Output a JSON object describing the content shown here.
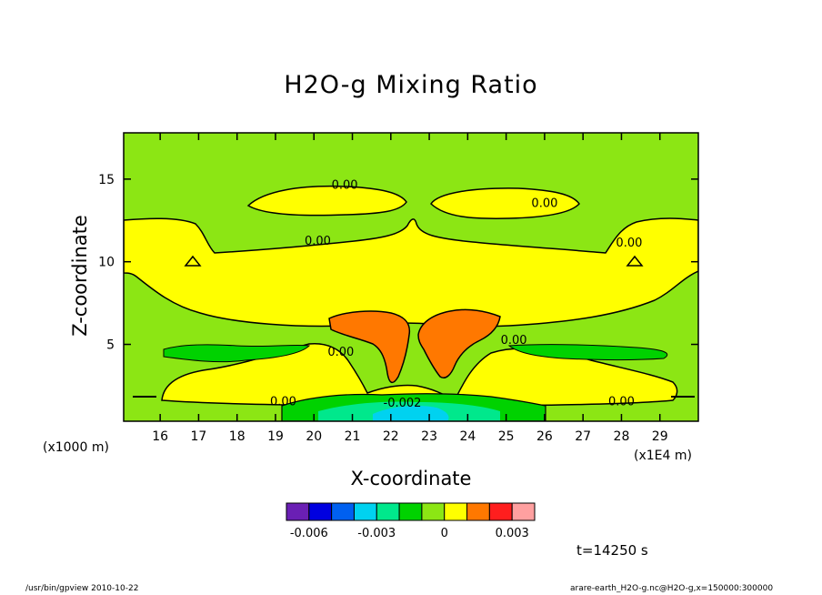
{
  "chart_data": {
    "type": "contour",
    "title": "H2O-g Mixing Ratio",
    "xlabel": "X-coordinate",
    "ylabel": "Z-coordinate",
    "x_unit_label": "(x1000 m)",
    "x_scale_label": "(x1E4 m)",
    "xlim": [
      15.05,
      30.0
    ],
    "ylim": [
      0.35,
      17.8
    ],
    "x_ticks": [
      16,
      17,
      18,
      19,
      20,
      21,
      22,
      23,
      24,
      25,
      26,
      27,
      28,
      29
    ],
    "y_ticks": [
      5,
      10,
      15
    ],
    "contour_labels": [
      {
        "text": "0.00",
        "x": 20.8,
        "z": 14.7
      },
      {
        "text": "0.00",
        "x": 26.0,
        "z": 13.6
      },
      {
        "text": "0.00",
        "x": 20.1,
        "z": 11.3
      },
      {
        "text": "0.00",
        "x": 28.2,
        "z": 11.2
      },
      {
        "text": "0.00",
        "x": 20.7,
        "z": 4.6
      },
      {
        "text": "0.00",
        "x": 25.2,
        "z": 5.3
      },
      {
        "text": "0.00",
        "x": 19.2,
        "z": 1.6
      },
      {
        "text": "0.00",
        "x": 28.0,
        "z": 1.6
      },
      {
        "text": "-0.002",
        "x": 22.3,
        "z": 1.5
      }
    ],
    "colorbar": {
      "levels": [
        -0.007,
        -0.006,
        -0.005,
        -0.004,
        -0.003,
        -0.002,
        -0.001,
        0,
        0.001,
        0.002,
        0.003,
        0.004
      ],
      "colors": [
        "#6a1fb4",
        "#0000e0",
        "#0060f0",
        "#00d2f0",
        "#00e88c",
        "#00d200",
        "#8ce614",
        "#ffff00",
        "#ff7800",
        "#ff1e1e",
        "#ffa0a0"
      ],
      "tick_labels": [
        {
          "value": -0.006,
          "label": "-0.006"
        },
        {
          "value": -0.003,
          "label": "-0.003"
        },
        {
          "value": 0,
          "label": "0"
        },
        {
          "value": 0.003,
          "label": "0.003"
        }
      ]
    },
    "fill_colors": {
      "background": "#8ce614",
      "moist": "#ffff00",
      "wetter": "#ff7800",
      "dry1": "#00d200",
      "dry2": "#00e88c",
      "dry3": "#00d2f0"
    }
  },
  "time_label": "t=14250 s",
  "footer_left": "/usr/bin/gpview  2010-10-22",
  "footer_right": "arare-earth_H2O-g.nc@H2O-g,x=150000:300000"
}
